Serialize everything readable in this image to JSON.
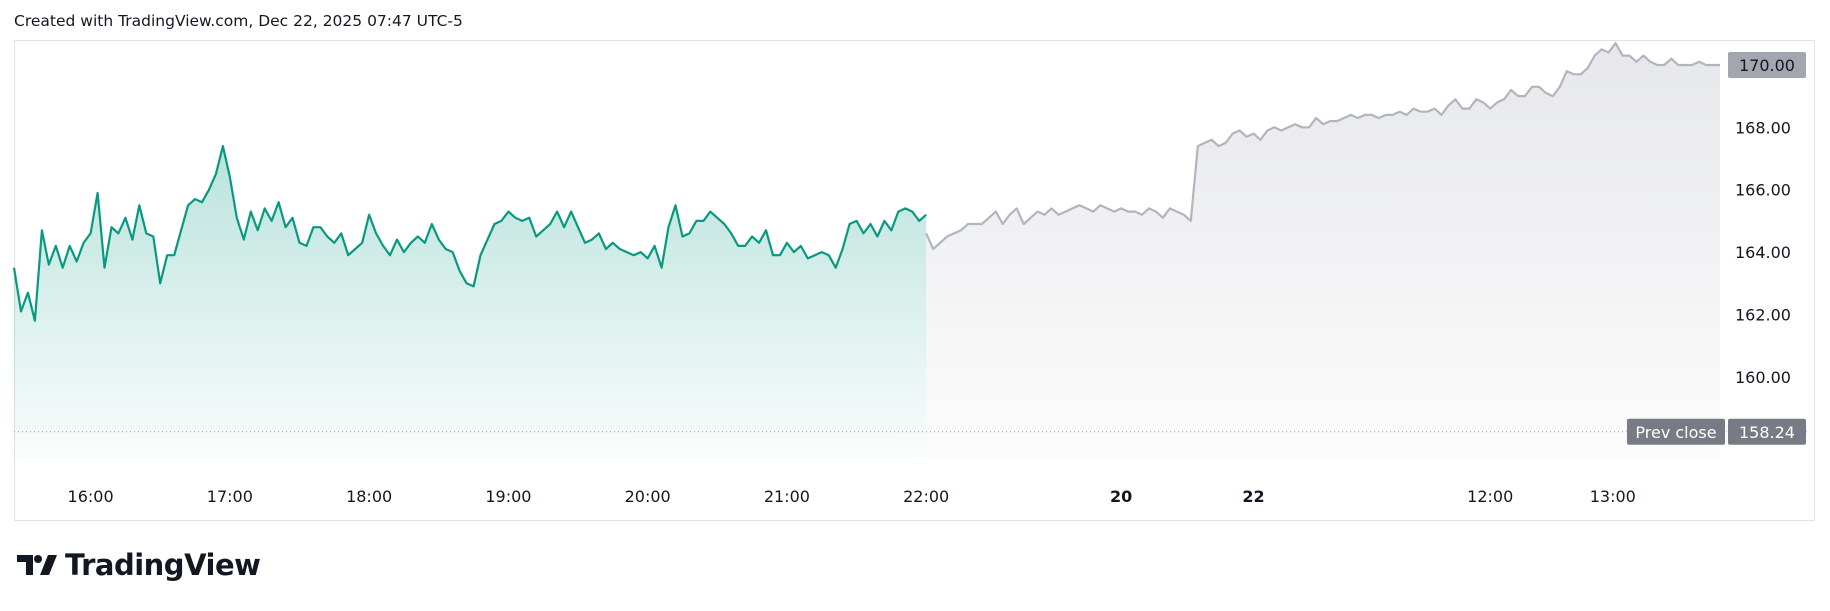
{
  "header": {
    "text": "Created with TradingView.com, Dec 22, 2025 07:47 UTC-5"
  },
  "footer": {
    "brand": "TradingView"
  },
  "colors": {
    "session_line": "#089981",
    "extended_line": "#b2b5be",
    "badge_gray": "#a3a6af",
    "prev_close_badge": "#787b86"
  },
  "chart_data": {
    "type": "line",
    "title": "",
    "ylim": [
      157.4,
      170.8
    ],
    "y_ticks": [
      160,
      162,
      164,
      166,
      168,
      170
    ],
    "y_tick_labels": [
      "160.00",
      "162.00",
      "164.00",
      "166.00",
      "168.00",
      "170.00"
    ],
    "x_tick_labels": [
      "16:00",
      "17:00",
      "18:00",
      "19:00",
      "20:00",
      "21:00",
      "22:00",
      "20",
      "22",
      "12:00",
      "13:00"
    ],
    "x_tick_positions": [
      0.55,
      1.55,
      2.55,
      3.55,
      4.55,
      5.55,
      6.55,
      7.95,
      8.9,
      10.6,
      11.48
    ],
    "x_tick_bold": [
      false,
      false,
      false,
      false,
      false,
      false,
      false,
      true,
      true,
      false,
      false
    ],
    "xlim": [
      0,
      12.25
    ],
    "last_price_label": "170.00",
    "prev_close": {
      "label": "Prev close",
      "value": 158.24,
      "value_label": "158.24"
    },
    "series": [
      {
        "segment": "session",
        "x": [
          0,
          0.05,
          0.1,
          0.15,
          0.2,
          0.25,
          0.3,
          0.35,
          0.4,
          0.45,
          0.5,
          0.55,
          0.6,
          0.65,
          0.7,
          0.75,
          0.8,
          0.85,
          0.9,
          0.95,
          1.0,
          1.05,
          1.1,
          1.15,
          1.2,
          1.25,
          1.3,
          1.35,
          1.4,
          1.45,
          1.5,
          1.55,
          1.6,
          1.65,
          1.7,
          1.75,
          1.8,
          1.85,
          1.9,
          1.95,
          2.0,
          2.05,
          2.1,
          2.15,
          2.2,
          2.25,
          2.3,
          2.35,
          2.4,
          2.45,
          2.5,
          2.55,
          2.6,
          2.65,
          2.7,
          2.75,
          2.8,
          2.85,
          2.9,
          2.95,
          3.0,
          3.05,
          3.1,
          3.15,
          3.2,
          3.25,
          3.3,
          3.35,
          3.4,
          3.45,
          3.5,
          3.55,
          3.6,
          3.65,
          3.7,
          3.75,
          3.8,
          3.85,
          3.9,
          3.95,
          4.0,
          4.05,
          4.1,
          4.15,
          4.2,
          4.25,
          4.3,
          4.35,
          4.4,
          4.45,
          4.5,
          4.55,
          4.6,
          4.65,
          4.7,
          4.75,
          4.8,
          4.85,
          4.9,
          4.95,
          5.0,
          5.05,
          5.1,
          5.15,
          5.2,
          5.25,
          5.3,
          5.35,
          5.4,
          5.45,
          5.5,
          5.55,
          5.6,
          5.65,
          5.7,
          5.75,
          5.8,
          5.85,
          5.9,
          5.95,
          6.0,
          6.05,
          6.1,
          6.15,
          6.2,
          6.25,
          6.3,
          6.35,
          6.4,
          6.45,
          6.5,
          6.55
        ],
        "values": [
          163.5,
          162.1,
          162.7,
          161.8,
          164.7,
          163.6,
          164.2,
          163.5,
          164.2,
          163.7,
          164.3,
          164.6,
          165.9,
          163.5,
          164.8,
          164.6,
          165.1,
          164.4,
          165.5,
          164.6,
          164.5,
          163.0,
          163.9,
          163.9,
          164.7,
          165.5,
          165.7,
          165.6,
          166.0,
          166.5,
          167.4,
          166.4,
          165.1,
          164.4,
          165.3,
          164.7,
          165.4,
          165.0,
          165.6,
          164.8,
          165.1,
          164.3,
          164.2,
          164.8,
          164.8,
          164.5,
          164.3,
          164.6,
          163.9,
          164.1,
          164.3,
          165.2,
          164.6,
          164.2,
          163.9,
          164.4,
          164.0,
          164.3,
          164.5,
          164.3,
          164.9,
          164.4,
          164.1,
          164.0,
          163.4,
          163.0,
          162.9,
          163.9,
          164.4,
          164.9,
          165.0,
          165.3,
          165.1,
          165.0,
          165.1,
          164.5,
          164.7,
          164.9,
          165.3,
          164.8,
          165.3,
          164.8,
          164.3,
          164.4,
          164.6,
          164.1,
          164.3,
          164.1,
          164.0,
          163.9,
          164.0,
          163.8,
          164.2,
          163.5,
          164.8,
          165.5,
          164.5,
          164.6,
          165.0,
          165.0,
          165.3,
          165.1,
          164.9,
          164.6,
          164.2,
          164.2,
          164.5,
          164.3,
          164.7,
          163.9,
          163.9,
          164.3,
          164.0,
          164.2,
          163.8,
          163.9,
          164.0,
          163.9,
          163.5,
          164.1,
          164.9,
          165.0,
          164.6,
          164.9,
          164.5,
          165.0,
          164.7,
          165.3,
          165.4,
          165.3,
          165.0,
          165.2
        ]
      },
      {
        "segment": "extended",
        "x": [
          6.55,
          6.6,
          6.65,
          6.7,
          6.75,
          6.8,
          6.85,
          6.9,
          6.95,
          7.0,
          7.05,
          7.1,
          7.15,
          7.2,
          7.25,
          7.3,
          7.35,
          7.4,
          7.45,
          7.5,
          7.55,
          7.6,
          7.65,
          7.7,
          7.75,
          7.8,
          7.85,
          7.9,
          7.95,
          8.0,
          8.05,
          8.1,
          8.15,
          8.2,
          8.25,
          8.3,
          8.35,
          8.4,
          8.45,
          8.5,
          8.55,
          8.6,
          8.65,
          8.7,
          8.75,
          8.8,
          8.85,
          8.9,
          8.95,
          9.0,
          9.05,
          9.1,
          9.15,
          9.2,
          9.25,
          9.3,
          9.35,
          9.4,
          9.45,
          9.5,
          9.55,
          9.6,
          9.65,
          9.7,
          9.75,
          9.8,
          9.85,
          9.9,
          9.95,
          10.0,
          10.05,
          10.1,
          10.15,
          10.2,
          10.25,
          10.3,
          10.35,
          10.4,
          10.45,
          10.5,
          10.55,
          10.6,
          10.65,
          10.7,
          10.75,
          10.8,
          10.85,
          10.9,
          10.95,
          11.0,
          11.05,
          11.1,
          11.15,
          11.2,
          11.25,
          11.3,
          11.35,
          11.4,
          11.45,
          11.5,
          11.55,
          11.6,
          11.65,
          11.7,
          11.75,
          11.8,
          11.85,
          11.9,
          11.95,
          12.0,
          12.05,
          12.1,
          12.15,
          12.2,
          12.25
        ],
        "values": [
          164.6,
          164.1,
          164.3,
          164.5,
          164.6,
          164.7,
          164.9,
          164.9,
          164.9,
          165.1,
          165.3,
          164.9,
          165.2,
          165.4,
          164.9,
          165.1,
          165.3,
          165.2,
          165.4,
          165.2,
          165.3,
          165.4,
          165.5,
          165.4,
          165.3,
          165.5,
          165.4,
          165.3,
          165.4,
          165.3,
          165.3,
          165.2,
          165.4,
          165.3,
          165.1,
          165.4,
          165.3,
          165.2,
          165.0,
          167.4,
          167.5,
          167.6,
          167.4,
          167.5,
          167.8,
          167.9,
          167.7,
          167.8,
          167.6,
          167.9,
          168.0,
          167.9,
          168.0,
          168.1,
          168.0,
          168.0,
          168.3,
          168.1,
          168.2,
          168.2,
          168.3,
          168.4,
          168.3,
          168.4,
          168.4,
          168.3,
          168.4,
          168.4,
          168.5,
          168.4,
          168.6,
          168.5,
          168.5,
          168.6,
          168.4,
          168.7,
          168.9,
          168.6,
          168.6,
          168.9,
          168.8,
          168.6,
          168.8,
          168.9,
          169.2,
          169.0,
          169.0,
          169.3,
          169.3,
          169.1,
          169.0,
          169.3,
          169.8,
          169.7,
          169.7,
          169.9,
          170.3,
          170.5,
          170.4,
          170.7,
          170.3,
          170.3,
          170.1,
          170.3,
          170.1,
          170.0,
          170.0,
          170.2,
          170.0,
          170.0,
          170.0,
          170.1,
          170.0,
          170.0,
          170.0
        ]
      }
    ]
  }
}
